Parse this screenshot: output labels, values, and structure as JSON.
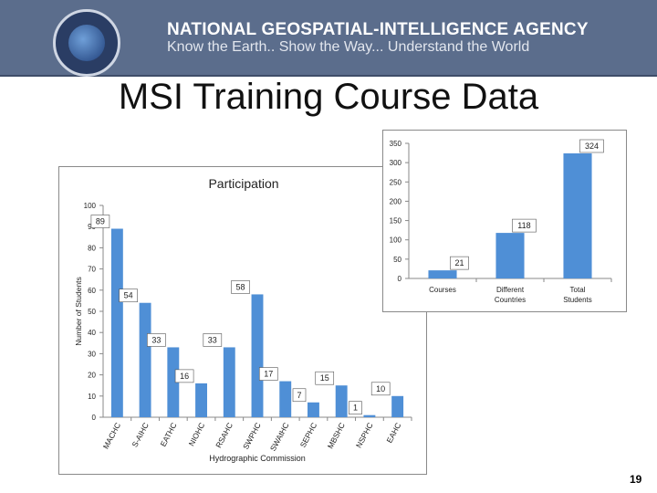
{
  "header": {
    "agency_name": "NATIONAL GEOSPATIAL-INTELLIGENCE AGENCY",
    "tagline": "Know the Earth.. Show the Way... Understand the World",
    "colors": {
      "banner": "#5b6d8c",
      "text": "#ffffff"
    }
  },
  "slide": {
    "title": "MSI Training Course Data",
    "page_number": "19"
  },
  "chart_data": [
    {
      "type": "bar",
      "title": "Participation",
      "xlabel": "Hydrographic Commission",
      "ylabel": "Number of Students",
      "categories": [
        "MACHC",
        "S-AIHC",
        "EATHC",
        "NIOHC",
        "RSAHC",
        "SWPHC",
        "SWAtHC",
        "SEPHC",
        "MBSHC",
        "NSPHC",
        "EAHC"
      ],
      "values": [
        89,
        54,
        33,
        16,
        33,
        58,
        17,
        7,
        15,
        1,
        10
      ],
      "ylim": [
        0,
        100
      ],
      "yticks": [
        0,
        10,
        20,
        30,
        40,
        50,
        60,
        70,
        80,
        90,
        100
      ],
      "grid": false,
      "bar_color": "#4f8fd6"
    },
    {
      "type": "bar",
      "title": "",
      "categories": [
        "Courses",
        "Different Countries",
        "Total Students"
      ],
      "values": [
        21,
        118,
        324
      ],
      "ylim": [
        0,
        350
      ],
      "yticks": [
        0,
        50,
        100,
        150,
        200,
        250,
        300,
        350
      ],
      "grid": false,
      "bar_color": "#4f8fd6"
    }
  ]
}
